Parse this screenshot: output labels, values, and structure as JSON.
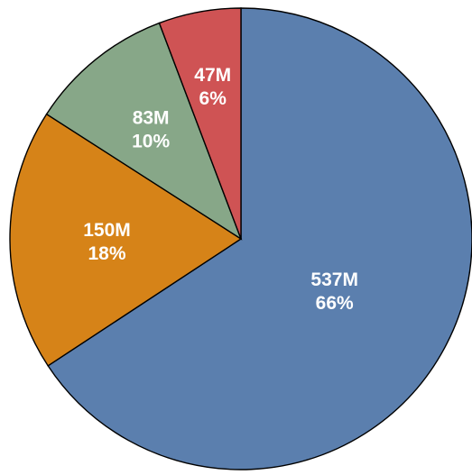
{
  "chart_data": {
    "type": "pie",
    "title": "",
    "start_angle_deg": 0,
    "direction": "clockwise",
    "slices": [
      {
        "value": 537,
        "value_label": "537M",
        "percent_label": "66%",
        "color": "#5b7fae"
      },
      {
        "value": 150,
        "value_label": "150M",
        "percent_label": "18%",
        "color": "#d68318"
      },
      {
        "value": 83,
        "value_label": "83M",
        "percent_label": "10%",
        "color": "#87a788"
      },
      {
        "value": 47,
        "value_label": "47M",
        "percent_label": "6%",
        "color": "#cf5354"
      }
    ],
    "legend": "none",
    "border_color": "#000000"
  }
}
